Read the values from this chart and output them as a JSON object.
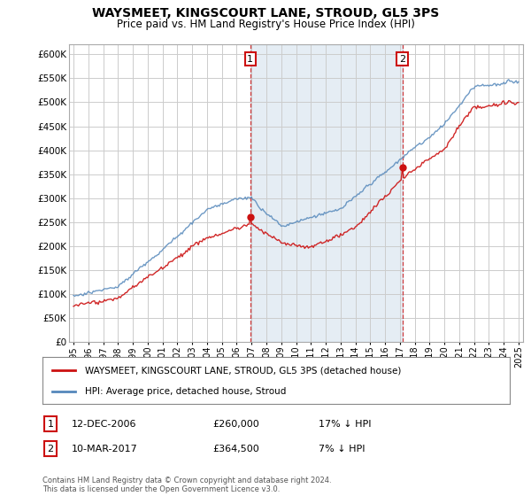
{
  "title": "WAYSMEET, KINGSCOURT LANE, STROUD, GL5 3PS",
  "subtitle": "Price paid vs. HM Land Registry's House Price Index (HPI)",
  "hpi_label": "HPI: Average price, detached house, Stroud",
  "property_label": "WAYSMEET, KINGSCOURT LANE, STROUD, GL5 3PS (detached house)",
  "hpi_color": "#5588bb",
  "hpi_fill_color": "#ddeeff",
  "property_color": "#cc1111",
  "marker1_date": "12-DEC-2006",
  "marker1_price": 260000,
  "marker1_hpi_diff": "17% ↓ HPI",
  "marker2_date": "10-MAR-2017",
  "marker2_price": 364500,
  "marker2_hpi_diff": "7% ↓ HPI",
  "ylim": [
    0,
    620000
  ],
  "yticks": [
    0,
    50000,
    100000,
    150000,
    200000,
    250000,
    300000,
    350000,
    400000,
    450000,
    500000,
    550000,
    600000
  ],
  "bg_color": "#ffffff",
  "grid_color": "#cccccc",
  "footnote": "Contains HM Land Registry data © Crown copyright and database right 2024.\nThis data is licensed under the Open Government Licence v3.0."
}
